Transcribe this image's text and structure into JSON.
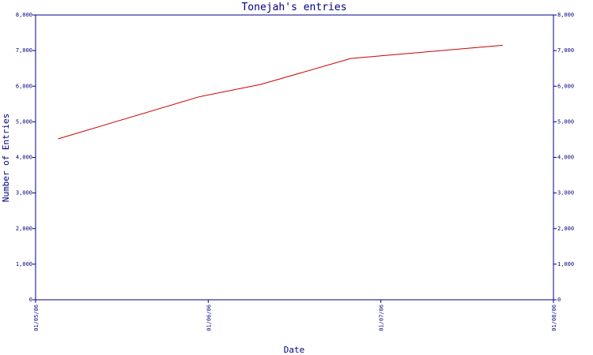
{
  "chart_data": {
    "type": "line",
    "title": "Tonejah's entries",
    "xlabel": "Date",
    "ylabel": "Number of Entries",
    "x_ticks": [
      "01/05/06",
      "01/06/06",
      "01/07/06",
      "01/08/06"
    ],
    "y_ticks": [
      "0",
      "1,000",
      "2,000",
      "3,000",
      "4,000",
      "5,000",
      "6,000",
      "7,000",
      "8,000"
    ],
    "ylim": [
      0,
      8000
    ],
    "xlim": [
      "2006-05-01",
      "2006-08-01"
    ],
    "series": [
      {
        "color": "#cc0000",
        "points": [
          {
            "x": "2006-05-05",
            "y": 4520
          },
          {
            "x": "2006-05-30",
            "y": 5700
          },
          {
            "x": "2006-06-10",
            "y": 6050
          },
          {
            "x": "2006-06-26",
            "y": 6780
          },
          {
            "x": "2006-07-23",
            "y": 7150
          }
        ]
      }
    ],
    "grid": false,
    "right_axis_mirror": true
  }
}
